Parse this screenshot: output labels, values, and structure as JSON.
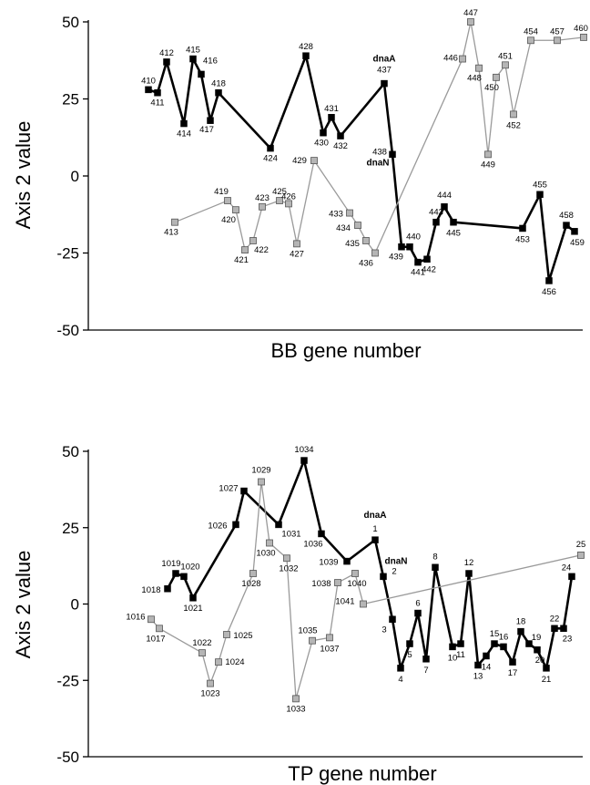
{
  "chart_data": [
    {
      "type": "line",
      "xlabel": "BB gene number",
      "ylabel": "Axis 2 value",
      "ylim": [
        -50,
        50
      ],
      "yticks": [
        "50",
        "25",
        "0",
        "-25",
        "-50"
      ],
      "ytick_values": [
        50,
        25,
        0,
        -25,
        -50
      ],
      "series": [
        {
          "style": "black",
          "color": "#000000",
          "points": [
            {
              "x": 410,
              "y": 28,
              "label": "410"
            },
            {
              "x": 411,
              "y": 27,
              "label": "411"
            },
            {
              "x": 412,
              "y": 37,
              "label": "412"
            },
            {
              "x": 414,
              "y": 17,
              "label": "414"
            },
            {
              "x": 415,
              "y": 38,
              "label": "415"
            },
            {
              "x": 416,
              "y": 33,
              "label": "416"
            },
            {
              "x": 417,
              "y": 18,
              "label": "417"
            },
            {
              "x": 418,
              "y": 27,
              "label": "418"
            },
            {
              "x": 424,
              "y": 9,
              "label": "424"
            },
            {
              "x": 428,
              "y": 39,
              "label": "428"
            },
            {
              "x": 430,
              "y": 14,
              "label": "430"
            },
            {
              "x": 431,
              "y": 19,
              "label": "431"
            },
            {
              "x": 432,
              "y": 13,
              "label": "432"
            },
            {
              "x": 437,
              "y": 30,
              "label": "437"
            },
            {
              "x": 438,
              "y": 7,
              "label": "438"
            },
            {
              "x": 439,
              "y": -23,
              "label": "439"
            },
            {
              "x": 440,
              "y": -23,
              "label": "440"
            },
            {
              "x": 441,
              "y": -28,
              "label": "441"
            },
            {
              "x": 442,
              "y": -27,
              "label": "442"
            },
            {
              "x": 443,
              "y": -15,
              "label": "443"
            },
            {
              "x": 444,
              "y": -10,
              "label": "444"
            },
            {
              "x": 445,
              "y": -15,
              "label": "445"
            },
            {
              "x": 453,
              "y": -17,
              "label": "453"
            },
            {
              "x": 455,
              "y": -6,
              "label": "455"
            },
            {
              "x": 456,
              "y": -34,
              "label": "456"
            },
            {
              "x": 458,
              "y": -16,
              "label": "458"
            },
            {
              "x": 459,
              "y": -18,
              "label": "459"
            }
          ]
        },
        {
          "style": "gray",
          "color": "#9a9a9a",
          "points": [
            {
              "x": 413,
              "y": -15,
              "label": "413"
            },
            {
              "x": 419,
              "y": -8,
              "label": "419"
            },
            {
              "x": 420,
              "y": -11,
              "label": "420"
            },
            {
              "x": 421,
              "y": -24,
              "label": "421"
            },
            {
              "x": 422,
              "y": -21,
              "label": "422"
            },
            {
              "x": 423,
              "y": -10,
              "label": "423"
            },
            {
              "x": 425,
              "y": -8,
              "label": "425"
            },
            {
              "x": 426,
              "y": -9,
              "label": "426"
            },
            {
              "x": 427,
              "y": -22,
              "label": "427"
            },
            {
              "x": 429,
              "y": 5,
              "label": "429"
            },
            {
              "x": 433,
              "y": -12,
              "label": "433"
            },
            {
              "x": 434,
              "y": -16,
              "label": "434"
            },
            {
              "x": 435,
              "y": -21,
              "label": "435"
            },
            {
              "x": 436,
              "y": -25,
              "label": "436"
            },
            {
              "x": 446,
              "y": 38,
              "label": "446"
            },
            {
              "x": 447,
              "y": 50,
              "label": "447"
            },
            {
              "x": 448,
              "y": 35,
              "label": "448"
            },
            {
              "x": 449,
              "y": 7,
              "label": "449"
            },
            {
              "x": 450,
              "y": 32,
              "label": "450"
            },
            {
              "x": 451,
              "y": 36,
              "label": "451"
            },
            {
              "x": 452,
              "y": 20,
              "label": "452"
            },
            {
              "x": 454,
              "y": 44,
              "label": "454"
            },
            {
              "x": 457,
              "y": 44,
              "label": "457"
            },
            {
              "x": 460,
              "y": 45,
              "label": "460"
            }
          ]
        }
      ],
      "annotations": [
        {
          "text": "dnaA",
          "x": 437,
          "y": 30
        },
        {
          "text": "dnaN",
          "x": 438,
          "y": 7
        }
      ]
    },
    {
      "type": "line",
      "xlabel": "TP gene number",
      "ylabel": "Axis 2 value",
      "ylim": [
        -50,
        50
      ],
      "yticks": [
        "50",
        "25",
        "0",
        "-25",
        "-50"
      ],
      "ytick_values": [
        50,
        25,
        0,
        -25,
        -50
      ],
      "series": [
        {
          "style": "black",
          "color": "#000000",
          "points": [
            {
              "x": 1018,
              "y": 5,
              "label": "1018"
            },
            {
              "x": 1019,
              "y": 10,
              "label": "1019"
            },
            {
              "x": 1020,
              "y": 9,
              "label": "1020"
            },
            {
              "x": 1021,
              "y": 2,
              "label": "1021"
            },
            {
              "x": 1026,
              "y": 26,
              "label": "1026"
            },
            {
              "x": 1027,
              "y": 37,
              "label": "1027"
            },
            {
              "x": 1031,
              "y": 26,
              "label": "1031"
            },
            {
              "x": 1034,
              "y": 47,
              "label": "1034"
            },
            {
              "x": 1036,
              "y": 23,
              "label": "1036"
            },
            {
              "x": 1039,
              "y": 14,
              "label": "1039"
            },
            {
              "x": 1,
              "y": 21,
              "label": "1"
            },
            {
              "x": 2,
              "y": 9,
              "label": "2"
            },
            {
              "x": 3,
              "y": -5,
              "label": "3"
            },
            {
              "x": 4,
              "y": -21,
              "label": "4"
            },
            {
              "x": 5,
              "y": -13,
              "label": "5"
            },
            {
              "x": 6,
              "y": -3,
              "label": "6"
            },
            {
              "x": 7,
              "y": -18,
              "label": "7"
            },
            {
              "x": 8,
              "y": 12,
              "label": "8"
            },
            {
              "x": 10,
              "y": -14,
              "label": "10"
            },
            {
              "x": 11,
              "y": -13,
              "label": "11"
            },
            {
              "x": 12,
              "y": 10,
              "label": "12"
            },
            {
              "x": 13,
              "y": -20,
              "label": "13"
            },
            {
              "x": 14,
              "y": -17,
              "label": "14"
            },
            {
              "x": 15,
              "y": -13,
              "label": "15"
            },
            {
              "x": 16,
              "y": -14,
              "label": "16"
            },
            {
              "x": 17,
              "y": -19,
              "label": "17"
            },
            {
              "x": 18,
              "y": -9,
              "label": "18"
            },
            {
              "x": 19,
              "y": -13,
              "label": "19"
            },
            {
              "x": 20,
              "y": -15,
              "label": "20"
            },
            {
              "x": 21,
              "y": -21,
              "label": "21"
            },
            {
              "x": 22,
              "y": -8,
              "label": "22"
            },
            {
              "x": 23,
              "y": -8,
              "label": "23"
            },
            {
              "x": 24,
              "y": 9,
              "label": "24"
            }
          ]
        },
        {
          "style": "gray",
          "color": "#9a9a9a",
          "points": [
            {
              "x": 1016,
              "y": -5,
              "label": "1016"
            },
            {
              "x": 1017,
              "y": -8,
              "label": "1017"
            },
            {
              "x": 1022,
              "y": -16,
              "label": "1022"
            },
            {
              "x": 1023,
              "y": -26,
              "label": "1023"
            },
            {
              "x": 1024,
              "y": -19,
              "label": "1024"
            },
            {
              "x": 1025,
              "y": -10,
              "label": "1025"
            },
            {
              "x": 1028,
              "y": 10,
              "label": "1028"
            },
            {
              "x": 1029,
              "y": 40,
              "label": "1029"
            },
            {
              "x": 1030,
              "y": 20,
              "label": "1030"
            },
            {
              "x": 1032,
              "y": 15,
              "label": "1032"
            },
            {
              "x": 1033,
              "y": -31,
              "label": "1033"
            },
            {
              "x": 1035,
              "y": -12,
              "label": "1035"
            },
            {
              "x": 1037,
              "y": -11,
              "label": "1037"
            },
            {
              "x": 1038,
              "y": 7,
              "label": "1038"
            },
            {
              "x": 1040,
              "y": 10,
              "label": "1040"
            },
            {
              "x": 1041,
              "y": 0,
              "label": "1041"
            },
            {
              "x": 25,
              "y": 16,
              "label": "25"
            }
          ]
        }
      ],
      "annotations": [
        {
          "text": "dnaA",
          "x": 1,
          "y": 21
        },
        {
          "text": "dnaN",
          "x": 2,
          "y": 9
        }
      ]
    }
  ]
}
